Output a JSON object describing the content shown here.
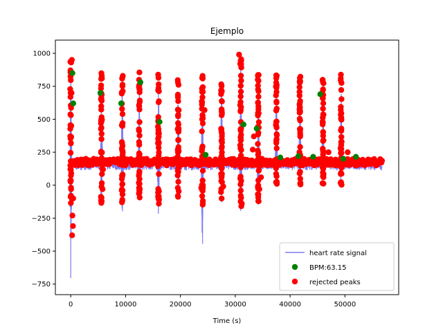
{
  "chart_data": {
    "type": "line",
    "title": "Ejemplo",
    "xlabel": "Time (s)",
    "ylabel": "",
    "xlim": [
      -2800,
      59800
    ],
    "ylim": [
      -830,
      1100
    ],
    "xticks": [
      0,
      10000,
      20000,
      30000,
      40000,
      50000
    ],
    "yticks": [
      -750,
      -500,
      -250,
      0,
      250,
      500,
      750,
      1000
    ],
    "legend_position": "lower right",
    "grid": false,
    "colors": {
      "signal": "#7b7bf5",
      "accepted": "#008000",
      "rejected": "#ff0000",
      "axes": "#000000",
      "legend_border": "#cccccc"
    },
    "legend": [
      {
        "label": "heart rate signal",
        "kind": "line",
        "color": "#7b7bf5"
      },
      {
        "label": "BPM:63.15",
        "kind": "dot",
        "color": "#008000"
      },
      {
        "label": "rejected peaks",
        "kind": "dot",
        "color": "#ff0000"
      }
    ],
    "series": [
      {
        "name": "heart rate signal",
        "kind": "line",
        "baseline": 150,
        "x_range": [
          0,
          56800
        ],
        "spikes": [
          {
            "x": 0,
            "max": 960,
            "min": -745
          },
          {
            "x": 5600,
            "max": 880,
            "min": -300
          },
          {
            "x": 9400,
            "max": 870,
            "min": -270
          },
          {
            "x": 12500,
            "max": 900,
            "min": -170
          },
          {
            "x": 16000,
            "max": 890,
            "min": -330
          },
          {
            "x": 19600,
            "max": 840,
            "min": -160
          },
          {
            "x": 24000,
            "max": 850,
            "min": -570
          },
          {
            "x": 27500,
            "max": 850,
            "min": -185
          },
          {
            "x": 31000,
            "max": 980,
            "min": -370
          },
          {
            "x": 34200,
            "max": 870,
            "min": -260
          },
          {
            "x": 37500,
            "max": 880,
            "min": -55
          },
          {
            "x": 41800,
            "max": 860,
            "min": -30
          },
          {
            "x": 46000,
            "max": 850,
            "min": -5
          },
          {
            "x": 49300,
            "max": 860,
            "min": 0
          }
        ]
      },
      {
        "name": "BPM:63.15",
        "kind": "scatter",
        "points": [
          [
            300,
            850
          ],
          [
            450,
            620
          ],
          [
            5400,
            700
          ],
          [
            9200,
            620
          ],
          [
            12700,
            780
          ],
          [
            16200,
            480
          ],
          [
            24600,
            230
          ],
          [
            31500,
            460
          ],
          [
            33900,
            430
          ],
          [
            38200,
            210
          ],
          [
            41500,
            220
          ],
          [
            44200,
            215
          ],
          [
            45500,
            690
          ],
          [
            49700,
            200
          ],
          [
            52000,
            215
          ]
        ]
      },
      {
        "name": "rejected peaks",
        "kind": "scatter",
        "band": [
          150,
          200
        ],
        "tail": [
          51000,
          56800
        ],
        "isolated": [
          [
            100,
            450
          ],
          [
            150,
            700
          ],
          [
            200,
            950
          ],
          [
            300,
            -230
          ],
          [
            400,
            -310
          ],
          [
            250,
            -380
          ],
          [
            450,
            -100
          ],
          [
            5800,
            -30
          ],
          [
            5900,
            120
          ],
          [
            9300,
            -40
          ],
          [
            9400,
            -110
          ],
          [
            12600,
            -30
          ],
          [
            12800,
            170
          ],
          [
            23800,
            -20
          ],
          [
            24100,
            0
          ],
          [
            24400,
            570
          ],
          [
            27800,
            -10
          ],
          [
            30700,
            990
          ],
          [
            30900,
            920
          ],
          [
            31000,
            -80
          ],
          [
            31200,
            -140
          ],
          [
            31100,
            -160
          ],
          [
            33200,
            270
          ],
          [
            33400,
            370
          ],
          [
            34400,
            -30
          ],
          [
            34700,
            60
          ],
          [
            47000,
            250
          ],
          [
            50500,
            250
          ]
        ]
      }
    ]
  }
}
